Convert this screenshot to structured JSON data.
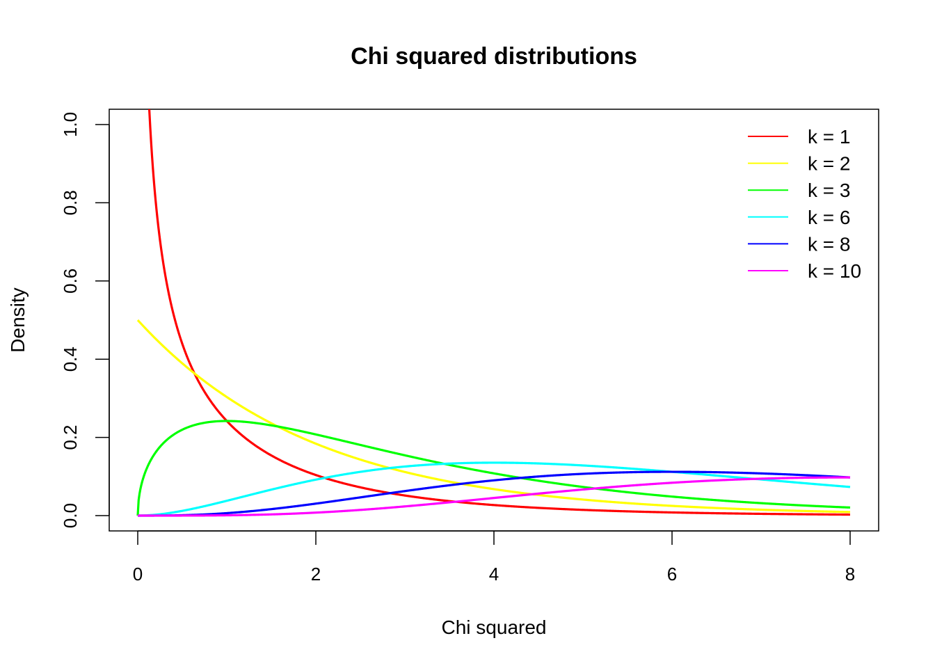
{
  "chart_data": {
    "type": "line",
    "title": "Chi squared distributions",
    "xlabel": "Chi squared",
    "ylabel": "Density",
    "xlim": [
      0,
      8
    ],
    "ylim": [
      0,
      1.04
    ],
    "x_ticks": [
      "0",
      "2",
      "4",
      "6",
      "8"
    ],
    "y_ticks": [
      "0.0",
      "0.2",
      "0.4",
      "0.6",
      "0.8",
      "1.0"
    ],
    "grid": false,
    "legend_position": "top-right",
    "function": "chi-squared density",
    "series": [
      {
        "name": "k = 1",
        "df": 1,
        "color": "#ff0000"
      },
      {
        "name": "k = 2",
        "df": 2,
        "color": "#ffff00"
      },
      {
        "name": "k = 3",
        "df": 3,
        "color": "#00ff00"
      },
      {
        "name": "k = 6",
        "df": 6,
        "color": "#00ffff"
      },
      {
        "name": "k = 8",
        "df": 8,
        "color": "#0000ff"
      },
      {
        "name": "k = 10",
        "df": 10,
        "color": "#ff00ff"
      }
    ]
  }
}
